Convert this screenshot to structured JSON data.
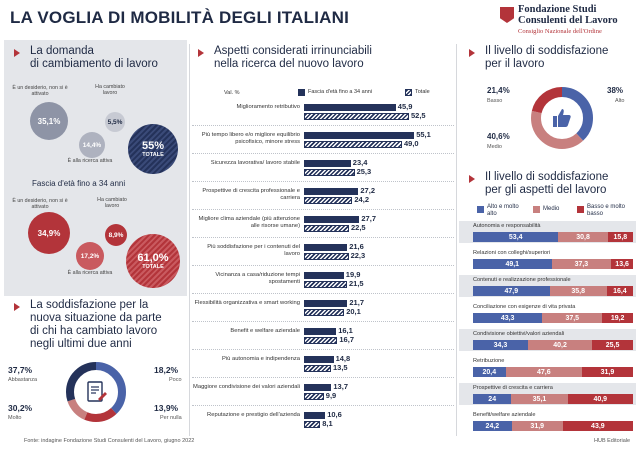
{
  "header": {
    "title": "LA VOGLIA DI MOBILITÀ DEGLI ITALIANI",
    "logo_line1": "Fondazione Studi",
    "logo_line2": "Consulenti del Lavoro",
    "logo_line3": "Consiglio Nazionale dell'Ordine"
  },
  "domanda": {
    "title_l1": "La domanda",
    "title_l2": "di cambiamento di lavoro",
    "all": {
      "desiderio_label": "È un desiderio, non si è attivato",
      "desiderio_pct": "35,1%",
      "cambiato_label": "Ha cambiato lavoro",
      "cambiato_pct": "5,5%",
      "ricerca_pct": "14,4%",
      "ricerca_label": "È alla ricerca attiva",
      "totale_pct": "55%",
      "totale_label": "TOTALE"
    },
    "youth_title": "Fascia d'età fino a 34 anni",
    "youth": {
      "desiderio_label": "È un desiderio, non si è attivato",
      "desiderio_pct": "34,9%",
      "cambiato_label": "Ha cambiato lavoro",
      "cambiato_pct": "8,9%",
      "ricerca_pct": "17,2%",
      "ricerca_label": "È alla ricerca attiva",
      "totale_pct": "61,0%",
      "totale_label": "TOTALE"
    }
  },
  "soddisfazione_cambio": {
    "title_l1": "La soddisfazione per la",
    "title_l2": "nuova situazione da parte",
    "title_l3": "di chi ha cambiato lavoro",
    "title_l4": "negli ultimi due anni",
    "abbastanza_pct": "37,7%",
    "abbastanza_label": "Abbastanza",
    "poco_pct": "18,2%",
    "poco_label": "Poco",
    "molto_pct": "30,2%",
    "molto_label": "Molto",
    "pernulla_pct": "13,9%",
    "pernulla_label": "Per nulla"
  },
  "aspetti": {
    "title_l1": "Aspetti considerati irrinunciabili",
    "title_l2": "nella ricerca del nuovo lavoro",
    "unit": "Val. %",
    "legend_youth": "Fascia d'età fino a 34 anni",
    "legend_total": "Totale",
    "rows": [
      {
        "label": "Miglioramento retributivo",
        "youth": 45.9,
        "total": 52.5,
        "youth_txt": "45,9",
        "total_txt": "52,5"
      },
      {
        "label": "Più tempo libero e/o migliore equilibrio psicofisico, minore stress",
        "youth": 55.1,
        "total": 49.0,
        "youth_txt": "55,1",
        "total_txt": "49,0"
      },
      {
        "label": "Sicurezza lavorativa/ lavoro stabile",
        "youth": 23.4,
        "total": 25.3,
        "youth_txt": "23,4",
        "total_txt": "25,3"
      },
      {
        "label": "Prospettive di crescita professionale e carriera",
        "youth": 27.2,
        "total": 24.2,
        "youth_txt": "27,2",
        "total_txt": "24,2"
      },
      {
        "label": "Migliore clima aziendale (più attenzione alle risorse umane)",
        "youth": 27.7,
        "total": 22.5,
        "youth_txt": "27,7",
        "total_txt": "22,5"
      },
      {
        "label": "Più soddisfazione per i contenuti del lavoro",
        "youth": 21.6,
        "total": 22.3,
        "youth_txt": "21,6",
        "total_txt": "22,3"
      },
      {
        "label": "Vicinanza a casa/riduzione tempi spostamenti",
        "youth": 19.9,
        "total": 21.5,
        "youth_txt": "19,9",
        "total_txt": "21,5"
      },
      {
        "label": "Flessibilità organizzativa e smart working",
        "youth": 21.7,
        "total": 20.1,
        "youth_txt": "21,7",
        "total_txt": "20,1"
      },
      {
        "label": "Benefit e welfare aziendale",
        "youth": 16.1,
        "total": 16.7,
        "youth_txt": "16,1",
        "total_txt": "16,7"
      },
      {
        "label": "Più autonomia e indipendenza",
        "youth": 14.8,
        "total": 13.5,
        "youth_txt": "14,8",
        "total_txt": "13,5"
      },
      {
        "label": "Maggiore condivisione dei valori aziendali",
        "youth": 13.7,
        "total": 9.9,
        "youth_txt": "13,7",
        "total_txt": "9,9"
      },
      {
        "label": "Reputazione e prestigio dell'azienda",
        "youth": 10.6,
        "total": 8.1,
        "youth_txt": "10,6",
        "total_txt": "8,1"
      }
    ]
  },
  "livello": {
    "title_l1": "Il livello di soddisfazione",
    "title_l2": "per il lavoro",
    "basso_pct": "21,4%",
    "basso_label": "Basso",
    "alto_pct": "38%",
    "alto_label": "Alto",
    "medio_pct": "40,6%",
    "medio_label": "Medio",
    "basso_value": 21.4,
    "alto_value": 38.0,
    "medio_value": 40.6
  },
  "livello_aspetti": {
    "title_l1": "Il livello di soddisfazione",
    "title_l2": "per gli aspetti del lavoro",
    "legend_alto": "Alto e molto alto",
    "legend_medio": "Medio",
    "legend_basso": "Basso e molto basso",
    "rows": [
      {
        "label": "Autonomia e responsabilità",
        "alto": 53.4,
        "medio": 30.8,
        "basso": 15.8,
        "alto_txt": "53,4",
        "medio_txt": "30,8",
        "basso_txt": "15,8"
      },
      {
        "label": "Relazioni con colleghi/superiori",
        "alto": 49.1,
        "medio": 37.3,
        "basso": 13.6,
        "alto_txt": "49,1",
        "medio_txt": "37,3",
        "basso_txt": "13,6"
      },
      {
        "label": "Contenuti e realizzazione professionale",
        "alto": 47.9,
        "medio": 35.8,
        "basso": 16.4,
        "alto_txt": "47,9",
        "medio_txt": "35,8",
        "basso_txt": "16,4"
      },
      {
        "label": "Conciliazione con esigenze di vita privata",
        "alto": 43.3,
        "medio": 37.5,
        "basso": 19.2,
        "alto_txt": "43,3",
        "medio_txt": "37,5",
        "basso_txt": "19,2"
      },
      {
        "label": "Condivisione obiettivi/valori aziendali",
        "alto": 34.3,
        "medio": 40.2,
        "basso": 25.5,
        "alto_txt": "34,3",
        "medio_txt": "40,2",
        "basso_txt": "25,5"
      },
      {
        "label": "Retribuzione",
        "alto": 20.4,
        "medio": 47.6,
        "basso": 31.9,
        "alto_txt": "20,4",
        "medio_txt": "47,6",
        "basso_txt": "31,9"
      },
      {
        "label": "Prospettive di crescita e carriera",
        "alto": 24.0,
        "medio": 35.1,
        "basso": 40.9,
        "alto_txt": "24",
        "medio_txt": "35,1",
        "basso_txt": "40,9"
      },
      {
        "label": "Benefit/welfare aziendale",
        "alto": 24.2,
        "medio": 31.9,
        "basso": 43.9,
        "alto_txt": "24,2",
        "medio_txt": "31,9",
        "basso_txt": "43,9"
      }
    ]
  },
  "footer": {
    "source": "Fonte: indagine Fondazione Studi Consulenti del Lavoro, giugno 2022",
    "credit": "HUB Editoriale"
  },
  "colors": {
    "navy": "#24325a",
    "red": "#b3343a",
    "blue": "#4a63a8",
    "pink": "#c8807f"
  }
}
